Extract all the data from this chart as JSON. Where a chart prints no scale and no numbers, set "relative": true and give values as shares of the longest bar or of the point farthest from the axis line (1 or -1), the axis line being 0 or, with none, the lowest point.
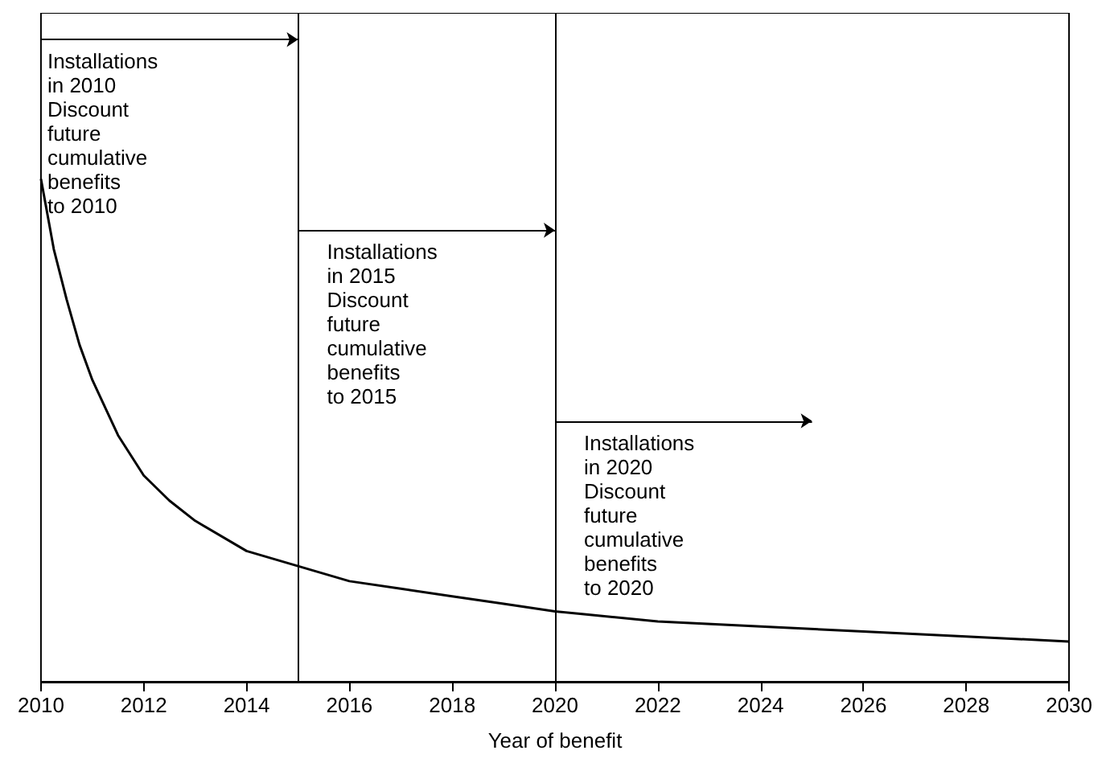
{
  "chart_data": {
    "type": "line",
    "relative": true,
    "xlabel": "Year of benefit",
    "x": [
      2010,
      2010.25,
      2010.5,
      2010.75,
      2011,
      2011.5,
      2012,
      2012.5,
      2013,
      2014,
      2015,
      2016,
      2017,
      2018,
      2019,
      2020,
      2022,
      2024,
      2026,
      2028,
      2030
    ],
    "series": [
      {
        "color": "#000000",
        "values": [
          1.0,
          0.86,
          0.76,
          0.67,
          0.6,
          0.49,
          0.41,
          0.36,
          0.32,
          0.26,
          0.23,
          0.2,
          0.185,
          0.17,
          0.155,
          0.14,
          0.12,
          0.11,
          0.1,
          0.09,
          0.08
        ]
      }
    ],
    "xlim": [
      2010,
      2030
    ],
    "xticks": [
      2010,
      2012,
      2014,
      2016,
      2018,
      2020,
      2022,
      2024,
      2026,
      2028,
      2030
    ],
    "grid": false,
    "marker": "none",
    "line_style": "solid",
    "ref_lines": [
      {
        "axis": "x",
        "value": 2015,
        "color": "#000000"
      },
      {
        "axis": "x",
        "value": 2020,
        "color": "#000000"
      }
    ],
    "annotations": [
      "Installations\nin 2010\nDiscount\nfuture\ncumulative\nbenefits\nto 2010",
      "Installations\nin 2015\nDiscount\nfuture\ncumulative\nbenefits\nto 2015",
      "Installations\nin 2020\nDiscount\nfuture\ncumulative\nbenefits\nto 2020"
    ]
  }
}
